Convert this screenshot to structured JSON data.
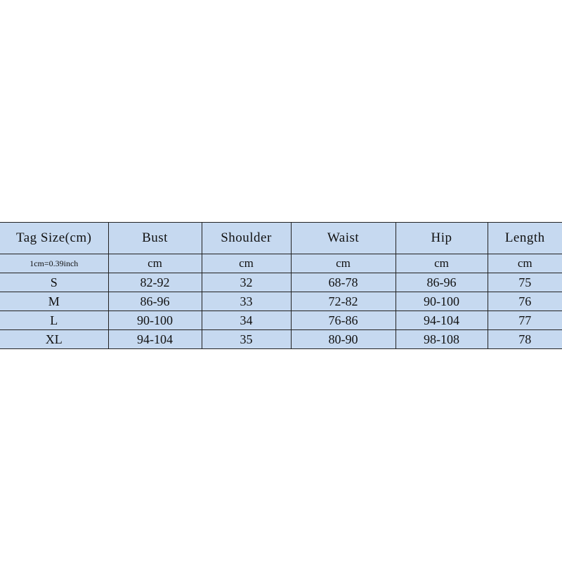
{
  "table": {
    "header": [
      "Tag Size(cm)",
      "Bust",
      "Shoulder",
      "Waist",
      "Hip",
      "Length"
    ],
    "units": [
      "1cm=0.39inch",
      "cm",
      "cm",
      "cm",
      "cm",
      "cm"
    ],
    "rows": [
      [
        "S",
        "82-92",
        "32",
        "68-78",
        "86-96",
        "75"
      ],
      [
        "M",
        "86-96",
        "33",
        "72-82",
        "90-100",
        "76"
      ],
      [
        "L",
        "90-100",
        "34",
        "76-86",
        "94-104",
        "77"
      ],
      [
        "XL",
        "94-104",
        "35",
        "80-90",
        "98-108",
        "78"
      ]
    ]
  }
}
